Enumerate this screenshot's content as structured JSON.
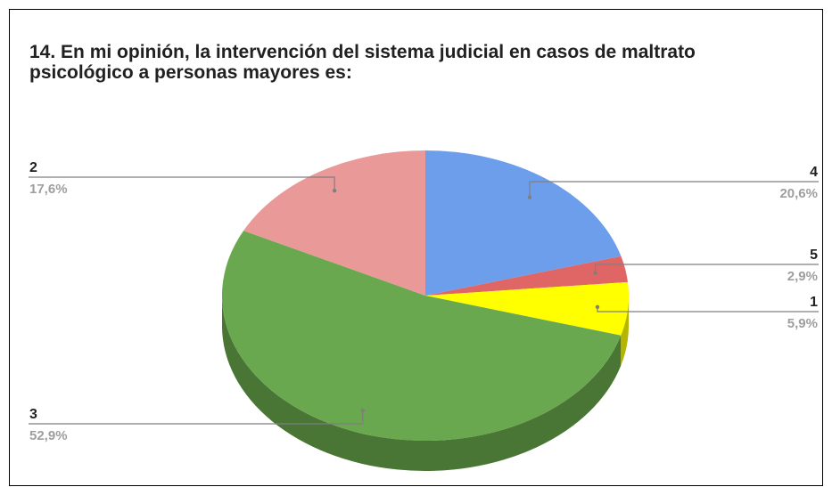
{
  "chart_data": {
    "type": "pie",
    "title": "14. En mi opinión, la intervención del sistema judicial en casos de maltrato psicológico a personas mayores es:",
    "three_d": true,
    "slices": [
      {
        "label": "4",
        "value": 20.6,
        "pct_text": "20,6%",
        "color": "#6d9eeb",
        "side_color": "#4a6fa5"
      },
      {
        "label": "5",
        "value": 2.9,
        "pct_text": "2,9%",
        "color": "#e06666",
        "side_color": "#9c4040"
      },
      {
        "label": "1",
        "value": 5.9,
        "pct_text": "5,9%",
        "color": "#ffff00",
        "side_color": "#b5b500"
      },
      {
        "label": "3",
        "value": 52.9,
        "pct_text": "52,9%",
        "color": "#6aa84f",
        "side_color": "#497535"
      },
      {
        "label": "2",
        "value": 17.6,
        "pct_text": "17,6%",
        "color": "#ea9999",
        "side_color": "#a86b6b"
      }
    ],
    "label_text_color": "#212121",
    "pct_text_color": "#9e9e9e",
    "leader_line_color": "#7f7f7f"
  }
}
